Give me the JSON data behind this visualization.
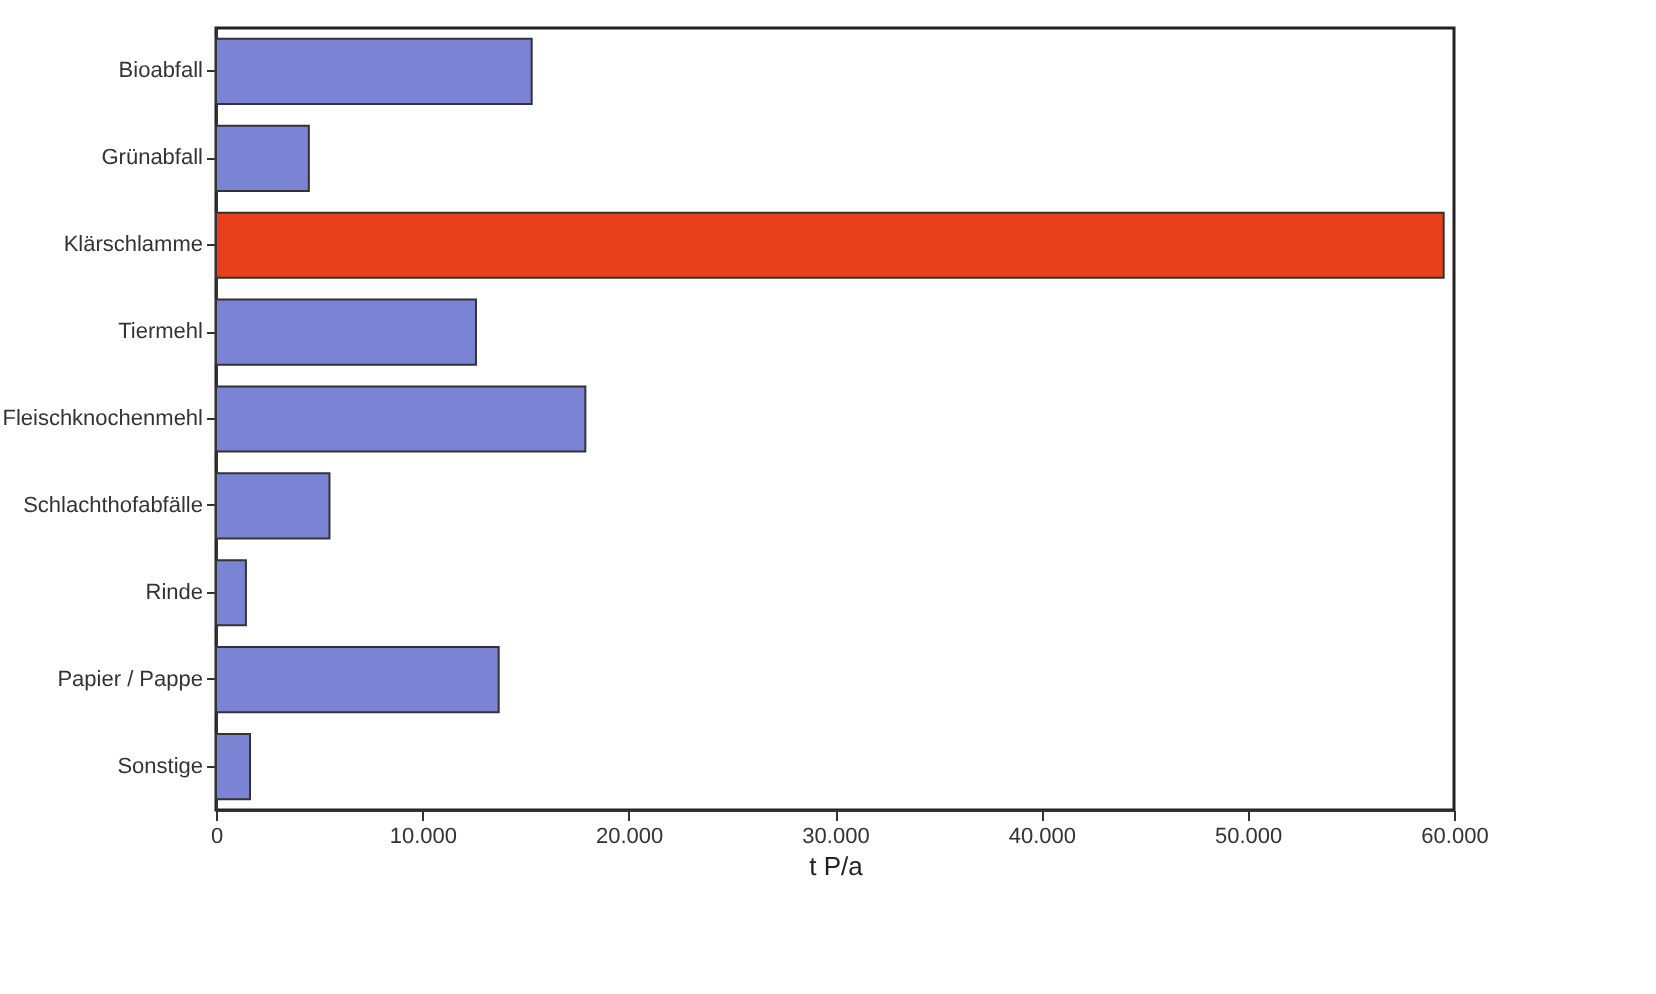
{
  "chart_data": {
    "type": "bar",
    "orientation": "horizontal",
    "xlabel": "t P/a",
    "categories": [
      "Bioabfall",
      "Grünabfall",
      "Klärschlamme",
      "Tiermehl",
      "Fleischknochenmehl",
      "Schlachthofabfälle",
      "Rinde",
      "Papier / Pappe",
      "Sonstige"
    ],
    "values": [
      15300,
      4500,
      59500,
      12600,
      17900,
      5500,
      1450,
      13700,
      1650
    ],
    "colors": [
      "#7b84d4",
      "#7b84d4",
      "#e8401c",
      "#7b84d4",
      "#7b84d4",
      "#7b84d4",
      "#7b84d4",
      "#7b84d4",
      "#7b84d4"
    ],
    "xlim": [
      0,
      60000
    ],
    "xticks": [
      {
        "value": 0,
        "label": "0"
      },
      {
        "value": 10000,
        "label": "10.000"
      },
      {
        "value": 20000,
        "label": "20.000"
      },
      {
        "value": 30000,
        "label": "30.000"
      },
      {
        "value": 40000,
        "label": "40.000"
      },
      {
        "value": 50000,
        "label": "50.000"
      },
      {
        "value": 60000,
        "label": "60.000"
      }
    ],
    "grid": false
  }
}
